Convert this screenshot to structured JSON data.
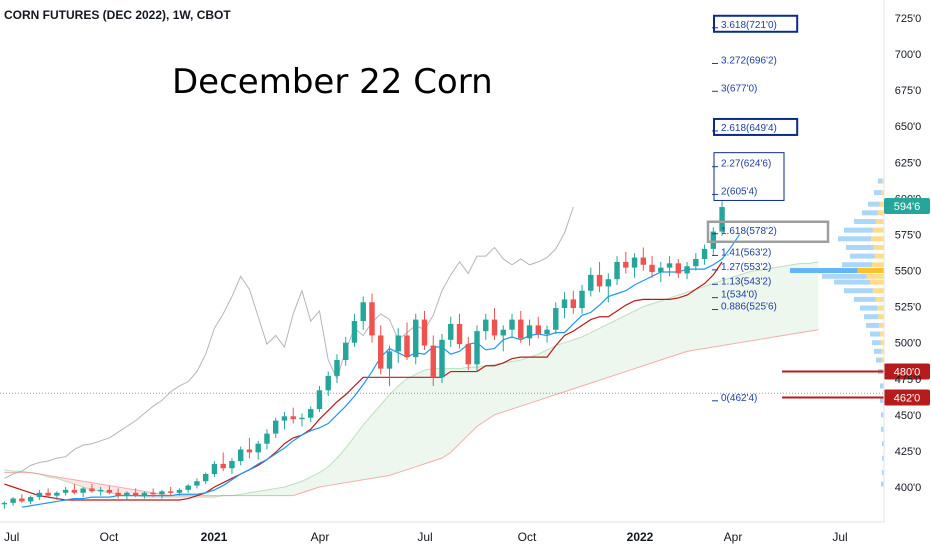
{
  "header": {
    "symbol_line": "CORN FUTURES (DEC 2022), 1W, CBOT"
  },
  "annotation": {
    "title": "December 22 Corn"
  },
  "colors": {
    "up": "#26a69a",
    "down": "#ef5350",
    "fast_line": "#2196f3",
    "slow_line": "#b71c1c",
    "gray_line": "#b2b5be",
    "fib_text": "#1e3fa0",
    "box_blue": "#0d2a8a",
    "box_gray": "#9e9e9e",
    "price_tag_current": "#26a69a",
    "price_tag_red": "#b71c1c"
  },
  "chart_data": {
    "type": "candlestick",
    "x_tick_labels": [
      "Jul",
      "Oct",
      "2021",
      "Apr",
      "Jul",
      "Oct",
      "2022",
      "Apr",
      "Jul"
    ],
    "y_tick_labels": [
      "400'0",
      "425'0",
      "450'0",
      "475'0",
      "500'0",
      "525'0",
      "550'0",
      "575'0",
      "600'0",
      "625'0",
      "650'0",
      "675'0",
      "700'0",
      "725'0"
    ],
    "ylim": [
      380,
      735
    ],
    "weeks_visible": 101,
    "candles": [
      [
        388,
        390,
        385,
        389
      ],
      [
        389,
        393,
        387,
        392
      ],
      [
        392,
        395,
        389,
        390
      ],
      [
        390,
        394,
        388,
        393
      ],
      [
        393,
        398,
        391,
        396
      ],
      [
        396,
        399,
        393,
        394
      ],
      [
        394,
        397,
        391,
        396
      ],
      [
        396,
        400,
        394,
        398
      ],
      [
        398,
        402,
        395,
        396
      ],
      [
        396,
        400,
        393,
        399
      ],
      [
        399,
        402,
        396,
        397
      ],
      [
        397,
        400,
        394,
        398
      ],
      [
        398,
        401,
        395,
        396
      ],
      [
        396,
        399,
        392,
        394
      ],
      [
        394,
        397,
        391,
        396
      ],
      [
        396,
        399,
        393,
        394
      ],
      [
        394,
        397,
        392,
        396
      ],
      [
        396,
        399,
        393,
        395
      ],
      [
        395,
        398,
        392,
        397
      ],
      [
        397,
        400,
        394,
        396
      ],
      [
        396,
        399,
        394,
        398
      ],
      [
        398,
        402,
        396,
        401
      ],
      [
        401,
        406,
        399,
        404
      ],
      [
        404,
        410,
        402,
        409
      ],
      [
        409,
        418,
        407,
        416
      ],
      [
        416,
        424,
        411,
        413
      ],
      [
        413,
        420,
        409,
        418
      ],
      [
        418,
        428,
        415,
        426
      ],
      [
        426,
        434,
        420,
        424
      ],
      [
        424,
        432,
        419,
        430
      ],
      [
        430,
        440,
        426,
        437
      ],
      [
        437,
        448,
        434,
        446
      ],
      [
        446,
        452,
        440,
        449
      ],
      [
        449,
        455,
        444,
        447
      ],
      [
        447,
        451,
        442,
        448
      ],
      [
        448,
        456,
        445,
        454
      ],
      [
        454,
        470,
        452,
        467
      ],
      [
        467,
        480,
        463,
        477
      ],
      [
        477,
        492,
        472,
        488
      ],
      [
        488,
        504,
        484,
        500
      ],
      [
        500,
        520,
        497,
        515
      ],
      [
        515,
        532,
        509,
        528
      ],
      [
        528,
        534,
        500,
        505
      ],
      [
        505,
        512,
        478,
        482
      ],
      [
        482,
        498,
        470,
        494
      ],
      [
        494,
        510,
        486,
        505
      ],
      [
        505,
        514,
        488,
        490
      ],
      [
        490,
        520,
        485,
        516
      ],
      [
        516,
        522,
        495,
        498
      ],
      [
        498,
        505,
        470,
        476
      ],
      [
        476,
        506,
        472,
        502
      ],
      [
        502,
        518,
        497,
        513
      ],
      [
        513,
        520,
        496,
        499
      ],
      [
        499,
        504,
        481,
        485
      ],
      [
        485,
        512,
        480,
        508
      ],
      [
        508,
        520,
        502,
        516
      ],
      [
        516,
        524,
        502,
        505
      ],
      [
        505,
        512,
        494,
        509
      ],
      [
        509,
        520,
        503,
        516
      ],
      [
        516,
        522,
        500,
        503
      ],
      [
        503,
        516,
        498,
        512
      ],
      [
        512,
        518,
        503,
        506
      ],
      [
        506,
        512,
        500,
        509
      ],
      [
        509,
        528,
        506,
        524
      ],
      [
        524,
        535,
        517,
        530
      ],
      [
        530,
        536,
        520,
        524
      ],
      [
        524,
        540,
        520,
        536
      ],
      [
        536,
        552,
        532,
        547
      ],
      [
        547,
        556,
        535,
        539
      ],
      [
        539,
        548,
        528,
        544
      ],
      [
        544,
        560,
        540,
        556
      ],
      [
        556,
        563,
        548,
        552
      ],
      [
        552,
        562,
        545,
        559
      ],
      [
        559,
        566,
        550,
        554
      ],
      [
        554,
        560,
        545,
        549
      ],
      [
        549,
        556,
        542,
        552
      ],
      [
        552,
        560,
        546,
        555
      ],
      [
        555,
        558,
        545,
        548
      ],
      [
        548,
        556,
        544,
        553
      ],
      [
        553,
        562,
        550,
        558
      ],
      [
        558,
        568,
        554,
        565
      ],
      [
        565,
        580,
        561,
        577
      ],
      [
        577,
        598,
        574,
        594
      ]
    ],
    "candles_start_week": 0,
    "fast_line": {
      "start_week": 2,
      "values": [
        386,
        387,
        388,
        389,
        390,
        391,
        392,
        392,
        393,
        393,
        393,
        394,
        394,
        394,
        394,
        394,
        394,
        394,
        395,
        395,
        395,
        396,
        398,
        401,
        405,
        409,
        412,
        416,
        419,
        423,
        427,
        432,
        436,
        439,
        441,
        444,
        450,
        456,
        463,
        471,
        480,
        490,
        496,
        493,
        490,
        493,
        492,
        497,
        497,
        492,
        494,
        499,
        500,
        495,
        496,
        502,
        504,
        502,
        505,
        506,
        505,
        507,
        507,
        513,
        519,
        521,
        526,
        532,
        534,
        536,
        540,
        543,
        546,
        549,
        549,
        549,
        551,
        551,
        551,
        554,
        558,
        566,
        575
      ]
    },
    "slow_line": {
      "start_week": 0,
      "values": [
        402,
        400,
        398,
        396,
        394,
        393,
        392,
        391,
        391,
        391,
        391,
        391,
        391,
        391,
        391,
        391,
        391,
        391,
        391,
        391,
        391,
        392,
        394,
        396,
        400,
        403,
        406,
        409,
        412,
        415,
        419,
        424,
        430,
        434,
        436,
        440,
        447,
        453,
        459,
        464,
        470,
        476,
        476,
        476,
        476,
        476,
        476,
        476,
        476,
        476,
        476,
        480,
        480,
        480,
        480,
        484,
        484,
        486,
        489,
        490,
        490,
        490,
        490,
        498,
        505,
        508,
        512,
        516,
        518,
        518,
        522,
        526,
        529,
        530,
        530,
        530,
        530,
        531,
        533,
        537,
        541,
        547,
        556
      ]
    },
    "lagging_line": {
      "start_week": 0,
      "values": [
        406,
        409,
        411,
        415,
        417,
        418,
        420,
        421,
        426,
        429,
        430,
        432,
        434,
        438,
        442,
        446,
        451,
        456,
        460,
        466,
        470,
        473,
        480,
        492,
        510,
        520,
        532,
        546,
        537,
        518,
        499,
        505,
        497,
        520,
        536,
        515,
        522,
        488,
        475,
        495,
        510,
        505,
        514,
        520,
        516,
        502,
        507,
        512,
        509,
        519,
        536,
        547,
        556,
        548,
        560,
        560,
        566,
        558,
        554,
        558,
        554,
        556,
        559,
        565,
        576,
        594
      ]
    },
    "cloud_span_a": {
      "start_week": 0,
      "values": [
        412,
        411,
        411,
        410,
        409,
        407,
        406,
        404,
        402,
        400,
        398,
        397,
        396,
        395,
        394,
        394,
        393,
        393,
        393,
        393,
        393,
        393,
        393,
        393,
        393,
        394,
        394,
        395,
        396,
        397,
        398,
        399,
        400,
        402,
        404,
        407,
        410,
        414,
        420,
        427,
        435,
        443,
        450,
        457,
        464,
        470,
        475,
        478,
        481,
        482,
        482,
        482,
        482,
        483,
        483,
        484,
        485,
        486,
        487,
        488,
        490,
        492,
        495,
        498,
        500,
        502,
        504,
        507,
        510,
        513,
        516,
        519,
        522,
        525,
        527,
        529,
        531,
        533,
        535,
        537,
        539,
        541,
        543,
        545,
        547,
        549,
        550,
        551,
        552,
        553,
        554,
        555,
        555,
        556
      ]
    },
    "cloud_span_b": {
      "start_week": 0,
      "values": [
        410,
        410,
        410,
        410,
        409,
        408,
        407,
        406,
        405,
        404,
        403,
        402,
        401,
        400,
        399,
        398,
        397,
        396,
        395,
        394,
        394,
        394,
        394,
        394,
        394,
        394,
        394,
        394,
        394,
        394,
        394,
        394,
        394,
        394,
        396,
        398,
        400,
        401,
        402,
        403,
        404,
        405,
        406,
        407,
        408,
        410,
        412,
        414,
        416,
        418,
        420,
        424,
        430,
        436,
        442,
        446,
        450,
        452,
        454,
        456,
        458,
        460,
        462,
        464,
        466,
        468,
        470,
        472,
        474,
        476,
        478,
        480,
        482,
        484,
        486,
        488,
        490,
        492,
        494,
        495,
        496,
        497,
        498,
        499,
        500,
        501,
        502,
        503,
        504,
        505,
        506,
        507,
        508,
        509
      ]
    },
    "fib_levels": [
      {
        "label": "0(462'4)",
        "value": 462.5
      },
      {
        "label": "0.886(525'6)",
        "value": 525.75
      },
      {
        "label": "1(534'0)",
        "value": 534.0
      },
      {
        "label": "1.13(543'2)",
        "value": 543.25
      },
      {
        "label": "1.27(553'2)",
        "value": 553.25
      },
      {
        "label": "1.41(563'2)",
        "value": 563.25
      },
      {
        "label": "1.618(578'2)",
        "value": 578.25,
        "box": "gray"
      },
      {
        "label": "2(605'4)",
        "value": 605.5
      },
      {
        "label": "2.27(624'6)",
        "value": 624.75
      },
      {
        "label": "2.618(649'4)",
        "value": 649.5,
        "box": "blue"
      },
      {
        "label": "3(677'0)",
        "value": 677.0
      },
      {
        "label": "3.272(696'2)",
        "value": 696.25
      },
      {
        "label": "3.618(721'0)",
        "value": 721.0,
        "box": "blue"
      }
    ],
    "fib_group_box": {
      "from": "2.27(624'6)",
      "to": "2(605'4)"
    },
    "horizontal_lines": [
      {
        "label": "480'0",
        "value": 480.0
      },
      {
        "label": "462'0",
        "value": 462.0
      }
    ],
    "current_price": {
      "label": "594'6",
      "value": 594.75
    },
    "dotted_reference_value": 465
  }
}
